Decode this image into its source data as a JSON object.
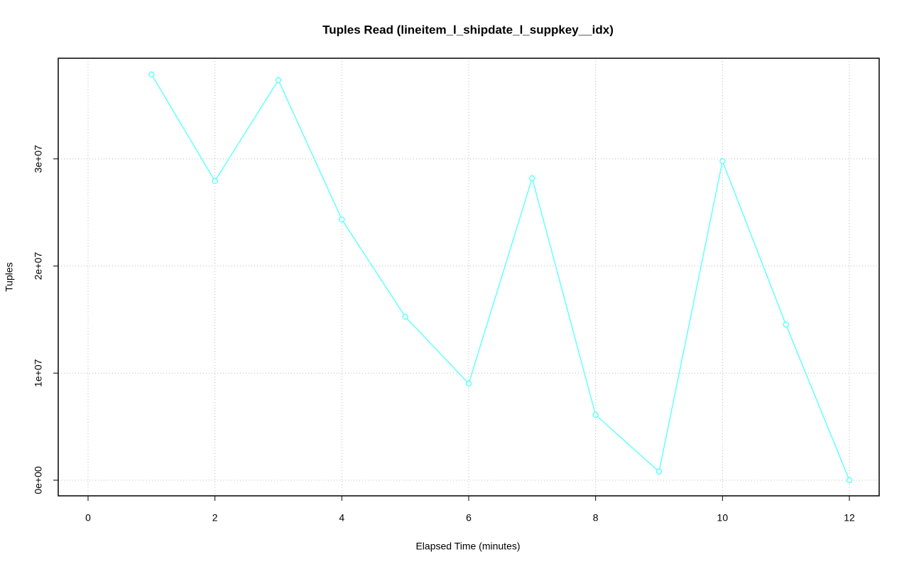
{
  "chart_data": {
    "type": "line",
    "title": "Tuples Read (lineitem_l_shipdate_l_suppkey__idx)",
    "x_label": "Elapsed Time (minutes)",
    "y_label": "Tuples",
    "x": [
      1,
      2,
      3,
      4,
      5,
      6,
      7,
      8,
      9,
      10,
      11,
      12
    ],
    "values": [
      37890000,
      27940000,
      37360000,
      24350000,
      15260000,
      9020000,
      28200000,
      6100000,
      800000,
      29790000,
      14530000,
      0
    ],
    "color": "#66ffff",
    "xlim": [
      -0.47,
      12.47
    ],
    "ylim": [
      -1460000,
      39400000
    ],
    "xticks": [
      0,
      2,
      4,
      6,
      8,
      10,
      12
    ],
    "yticks": [
      {
        "value": 0,
        "label": "0e+00"
      },
      {
        "value": 10000000,
        "label": "1e+07"
      },
      {
        "value": 20000000,
        "label": "2e+07"
      },
      {
        "value": 30000000,
        "label": "3e+07"
      }
    ],
    "grid": true
  }
}
